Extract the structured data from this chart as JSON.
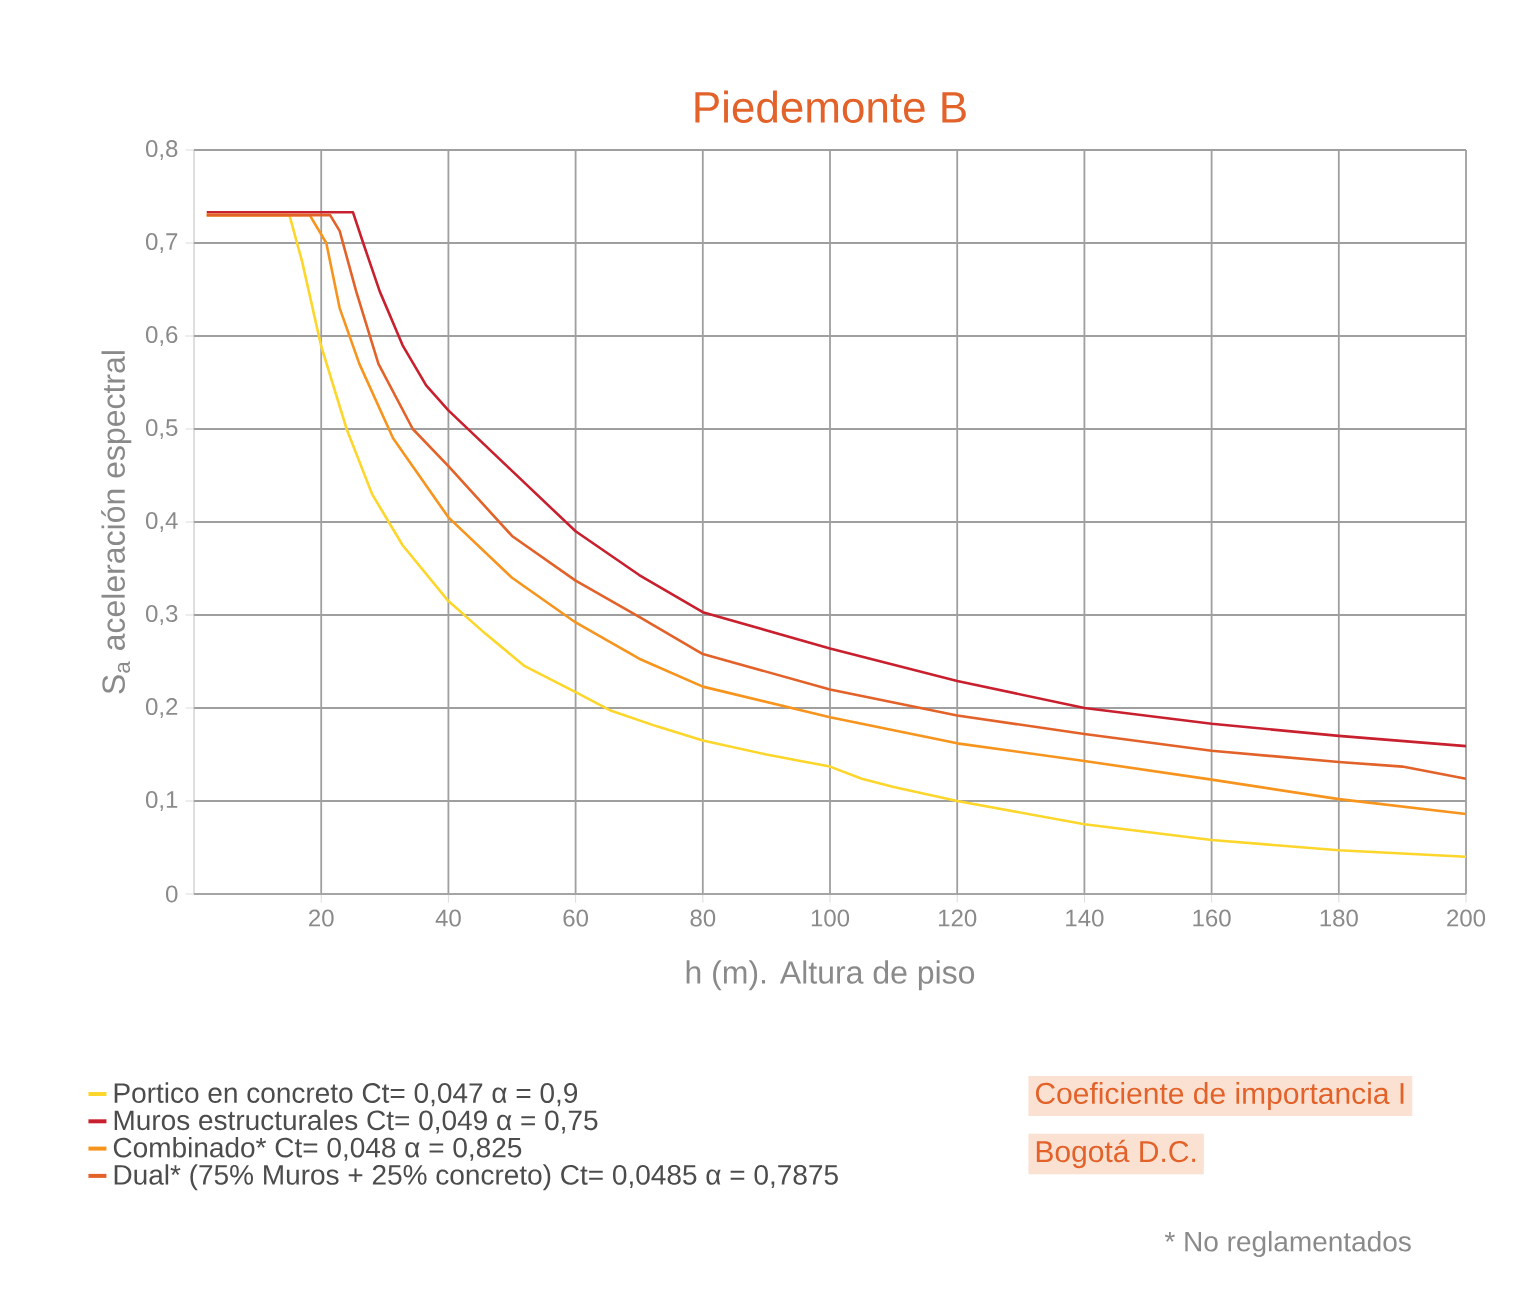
{
  "chart_data": {
    "type": "line",
    "title": "Piedemonte B",
    "xlabel": "h (m). Altura de piso",
    "ylabel": "S$_{a}$ aceleración espectral",
    "xlim": [
      0,
      200
    ],
    "xticks": [
      20,
      40,
      60,
      80,
      100,
      120,
      140,
      160,
      180,
      200
    ],
    "ylim": [
      0,
      0.8
    ],
    "yticks": [
      {
        "value": 0,
        "label": "0"
      },
      {
        "value": 0.1,
        "label": "0,1"
      },
      {
        "value": 0.2,
        "label": "0,2"
      },
      {
        "value": 0.3,
        "label": "0,3"
      },
      {
        "value": 0.4,
        "label": "0,4"
      },
      {
        "value": 0.5,
        "label": "0,5"
      },
      {
        "value": 0.6,
        "label": "0,6"
      },
      {
        "value": 0.7,
        "label": "0,7"
      },
      {
        "value": 0.8,
        "label": "0,8"
      }
    ],
    "grid": true,
    "legend": "bottom",
    "line_style": "solid",
    "marker": "none",
    "series": [
      {
        "name": "Portico en concreto Ct= 0,047 α = 0,9",
        "color": "#fdd62c",
        "x": [
          2,
          15,
          17,
          20,
          24,
          28,
          32.8,
          40,
          45.8,
          52,
          60,
          65.6,
          72.9,
          80,
          90,
          100,
          105,
          110,
          120,
          140,
          160,
          180,
          200
        ],
        "values": [
          0.73,
          0.73,
          0.68,
          0.589,
          0.5,
          0.43,
          0.375,
          0.315,
          0.28,
          0.245,
          0.217,
          0.197,
          0.18,
          0.165,
          0.15,
          0.137,
          0.124,
          0.115,
          0.1,
          0.075,
          0.058,
          0.047,
          0.04
        ]
      },
      {
        "name": "Muros estructurales Ct= 0,049 α = 0,75",
        "color": "#c8202e",
        "x": [
          2,
          25,
          26.6,
          29.2,
          32.8,
          36.5,
          40,
          50,
          60,
          70,
          80,
          100,
          120,
          140,
          160,
          180,
          200
        ],
        "values": [
          0.733,
          0.733,
          0.7,
          0.648,
          0.59,
          0.547,
          0.52,
          0.455,
          0.39,
          0.343,
          0.303,
          0.264,
          0.229,
          0.2,
          0.183,
          0.17,
          0.159
        ]
      },
      {
        "name": "Combinado* Ct= 0,048 α = 0,825",
        "color": "#f7941d",
        "x": [
          2,
          18.2,
          20.8,
          22.9,
          26,
          31.3,
          40,
          50,
          60,
          70,
          80,
          100,
          120,
          140,
          160,
          180,
          200
        ],
        "values": [
          0.73,
          0.73,
          0.7,
          0.63,
          0.57,
          0.49,
          0.405,
          0.34,
          0.292,
          0.253,
          0.223,
          0.19,
          0.162,
          0.143,
          0.123,
          0.102,
          0.086
        ]
      },
      {
        "name": "Dual* (75% Muros + 25% concreto) Ct= 0,0485 α = 0,7875",
        "color": "#e2622a",
        "x": [
          2,
          21.4,
          22.9,
          25.5,
          29,
          34.4,
          40,
          50,
          60,
          70,
          80,
          100,
          120,
          140,
          160,
          180,
          190,
          200
        ],
        "values": [
          0.73,
          0.73,
          0.713,
          0.648,
          0.57,
          0.5,
          0.46,
          0.385,
          0.337,
          0.298,
          0.258,
          0.22,
          0.192,
          0.172,
          0.154,
          0.142,
          0.137,
          0.124
        ]
      }
    ],
    "annotations": [
      "Coeficiente de importancia I",
      "Bogotá D.C.",
      "* No reglamentados"
    ]
  }
}
